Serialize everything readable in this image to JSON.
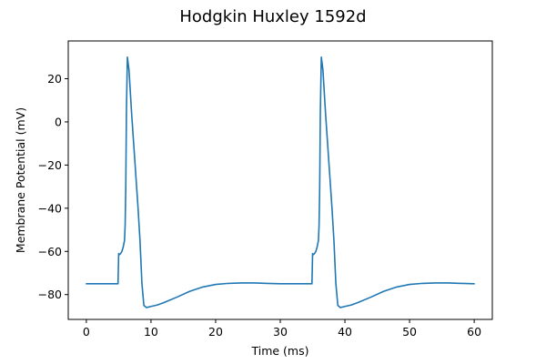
{
  "chart_data": {
    "type": "line",
    "title": "Hodgkin Huxley 1592d",
    "xlabel": "Time (ms)",
    "ylabel": "Membrane Potential (mV)",
    "xlim": [
      -2.8,
      62.8
    ],
    "ylim": [
      -91.5,
      37.5
    ],
    "xticks": [
      0,
      10,
      20,
      30,
      40,
      50,
      60
    ],
    "yticks": [
      -80,
      -60,
      -40,
      -20,
      0,
      20
    ],
    "xtick_labels": [
      "0",
      "10",
      "20",
      "30",
      "40",
      "50",
      "60"
    ],
    "ytick_labels": [
      "−80",
      "−60",
      "−40",
      "−20",
      "0",
      "20"
    ],
    "grid": false,
    "series": [
      {
        "color": "#1f77b4",
        "x": [
          0,
          4.9,
          5.0,
          5.1,
          5.3,
          5.5,
          5.7,
          5.9,
          6.0,
          6.1,
          6.2,
          6.35,
          6.6,
          7.0,
          7.5,
          8.0,
          8.3,
          8.6,
          8.9,
          9.3,
          10,
          11,
          12,
          14,
          16,
          18,
          20,
          22,
          24,
          26,
          28,
          30,
          32,
          34,
          34.9,
          35.0,
          35.1,
          35.3,
          35.5,
          35.7,
          35.9,
          36.0,
          36.1,
          36.2,
          36.35,
          36.6,
          37.0,
          37.5,
          38.0,
          38.3,
          38.6,
          38.9,
          39.3,
          40,
          41,
          42,
          44,
          46,
          48,
          50,
          52,
          54,
          56,
          58,
          60
        ],
        "y": [
          -75,
          -75,
          -61,
          -61.5,
          -61,
          -60,
          -58,
          -55,
          -48,
          -30,
          5,
          30,
          24,
          4,
          -18,
          -40,
          -55,
          -75,
          -85,
          -86,
          -85.5,
          -84.8,
          -83.7,
          -81.2,
          -78.5,
          -76.5,
          -75.3,
          -74.8,
          -74.6,
          -74.6,
          -74.8,
          -75,
          -75,
          -75,
          -75,
          -61,
          -61.5,
          -61,
          -60,
          -58,
          -55,
          -48,
          -30,
          5,
          30,
          24,
          4,
          -18,
          -40,
          -55,
          -75,
          -85,
          -86,
          -85.5,
          -84.8,
          -83.7,
          -81.2,
          -78.5,
          -76.5,
          -75.3,
          -74.8,
          -74.6,
          -74.6,
          -74.8,
          -75
        ]
      }
    ]
  }
}
